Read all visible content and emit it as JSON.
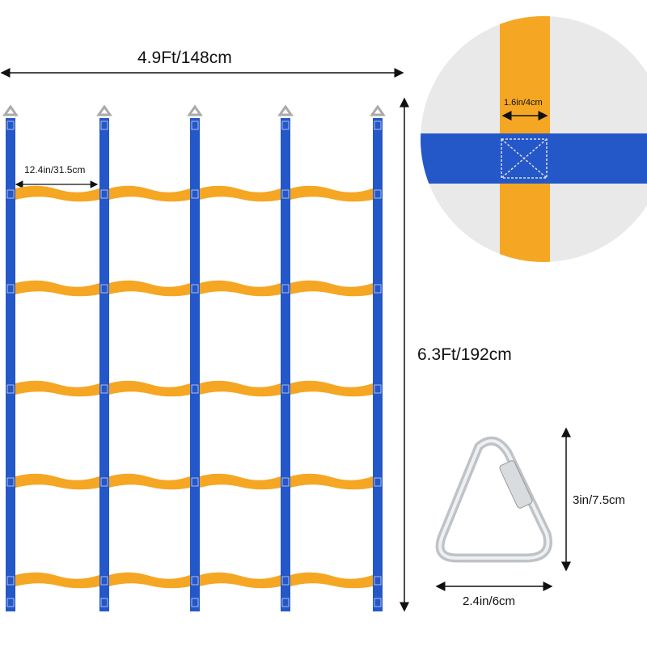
{
  "labels": {
    "net_width": "4.9Ft/148cm",
    "net_height": "6.3Ft/192cm",
    "rung_spacing": "12.4in/31.5cm",
    "strap_width": "1.6in/4cm",
    "carabiner_height": "3in/7.5cm",
    "carabiner_width": "2.4in/6cm"
  },
  "colors": {
    "vertical_strap": "#2457c8",
    "horizontal_strap": "#f5a623",
    "detail_background": "#e9e9e9",
    "carabiner": "#c8c8c8"
  }
}
